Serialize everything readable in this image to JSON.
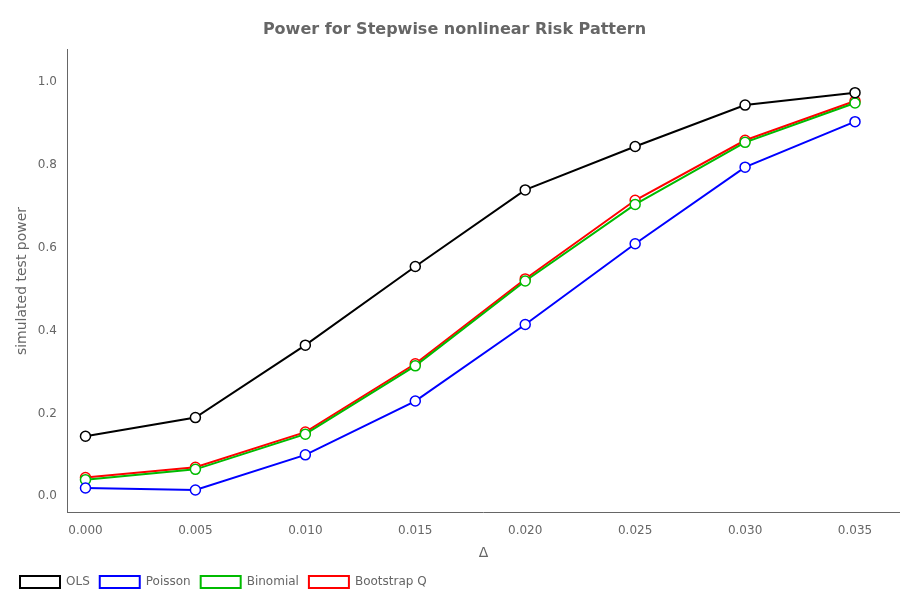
{
  "chart_data": {
    "type": "line",
    "title": "Power for Stepwise nonlinear Risk Pattern",
    "xlabel": "Δ",
    "ylabel": "simulated test power",
    "x": [
      0.0,
      0.005,
      0.01,
      0.015,
      0.02,
      0.025,
      0.03,
      0.035
    ],
    "series": [
      {
        "name": "OLS",
        "color": "#000000",
        "marker": "circle",
        "values": [
          0.145,
          0.19,
          0.365,
          0.555,
          0.74,
          0.845,
          0.945,
          0.975
        ]
      },
      {
        "name": "Poisson",
        "color": "#0000ff",
        "marker": "circle",
        "values": [
          0.02,
          0.015,
          0.1,
          0.23,
          0.415,
          0.61,
          0.795,
          0.905
        ]
      },
      {
        "name": "Binomial",
        "color": "#00bb00",
        "marker": "circle",
        "values": [
          0.04,
          0.065,
          0.15,
          0.315,
          0.52,
          0.705,
          0.855,
          0.95
        ]
      },
      {
        "name": "Bootstrap Q",
        "color": "#ff0000",
        "marker": "circle",
        "values": [
          0.045,
          0.07,
          0.155,
          0.32,
          0.525,
          0.715,
          0.86,
          0.955
        ]
      }
    ],
    "xlim": [
      -0.0008,
      0.037
    ],
    "ylim": [
      -0.04,
      1.08
    ],
    "xticks": [
      {
        "value": 0,
        "label": "0.000"
      },
      0.005,
      {
        "value": 0.01,
        "label": "0.010"
      },
      0.015,
      {
        "value": 0.02,
        "label": "0.020"
      },
      0.025,
      {
        "value": 0.03,
        "label": "0.030"
      },
      0.035
    ],
    "yticks": [
      {
        "value": 0,
        "label": "0.0"
      },
      0.2,
      0.4,
      0.6,
      0.8,
      {
        "value": 1,
        "label": "1.0"
      }
    ],
    "grid": false,
    "legend": "lower left"
  }
}
